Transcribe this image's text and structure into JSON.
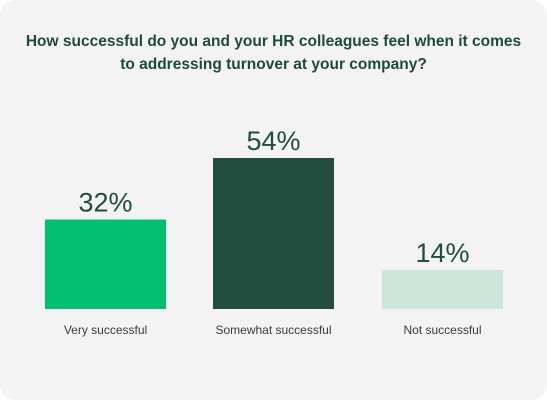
{
  "chart_data": {
    "type": "bar",
    "title": "How successful do you and your HR colleagues feel when it comes to addressing turnover at your company?",
    "categories": [
      "Very successful",
      "Somewhat successful",
      "Not successful"
    ],
    "values": [
      32,
      54,
      14
    ],
    "value_labels": [
      "32%",
      "54%",
      "14%"
    ],
    "colors": [
      "#00bf6f",
      "#224d3f",
      "#cce6dc"
    ],
    "label_color": "#224d3f",
    "ylim": [
      0,
      54
    ],
    "grid": false,
    "legend": "none"
  }
}
